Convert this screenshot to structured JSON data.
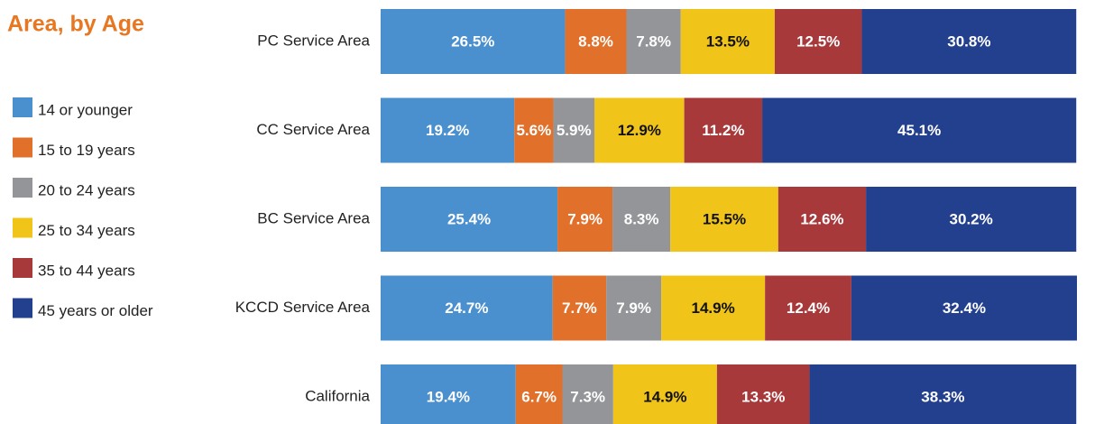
{
  "chart_data": {
    "type": "stacked-bar",
    "orientation": "horizontal",
    "title": "Area, by Age",
    "categories": [
      "PC Service Area",
      "CC Service Area",
      "BC Service Area",
      "KCCD Service Area",
      "California"
    ],
    "xlim": [
      0,
      100
    ],
    "series": [
      {
        "name": "14 or younger",
        "color": "#4a8fce",
        "values": [
          26.5,
          19.2,
          25.4,
          24.7,
          19.4
        ],
        "value_labels": [
          "26.5%",
          "19.2%",
          "25.4%",
          "24.7%",
          "19.4%"
        ]
      },
      {
        "name": "15 to 19 years",
        "color": "#e0702a",
        "values": [
          8.8,
          5.6,
          7.9,
          7.7,
          6.7
        ],
        "value_labels": [
          "8.8%",
          "5.6%",
          "7.9%",
          "7.7%",
          "6.7%"
        ]
      },
      {
        "name": "20 to 24 years",
        "color": "#939598",
        "values": [
          7.8,
          5.9,
          8.3,
          7.9,
          7.3
        ],
        "value_labels": [
          "7.8%",
          "5.9%",
          "8.3%",
          "7.9%",
          "7.3%"
        ]
      },
      {
        "name": "25 to 34 years",
        "color": "#f0c419",
        "values": [
          13.5,
          12.9,
          15.5,
          14.9,
          14.9
        ],
        "value_labels": [
          "13.5%",
          "12.9%",
          "15.5%",
          "14.9%",
          "14.9%"
        ]
      },
      {
        "name": "35 to 44 years",
        "color": "#a8393b",
        "values": [
          12.5,
          11.2,
          12.6,
          12.4,
          13.3
        ],
        "value_labels": [
          "12.5%",
          "11.2%",
          "12.6%",
          "12.4%",
          "13.3%"
        ]
      },
      {
        "name": "45 years or older",
        "color": "#23408e",
        "values": [
          30.8,
          45.1,
          30.2,
          32.4,
          38.3
        ],
        "value_labels": [
          "30.8%",
          "45.1%",
          "30.2%",
          "32.4%",
          "38.3%"
        ]
      }
    ]
  }
}
